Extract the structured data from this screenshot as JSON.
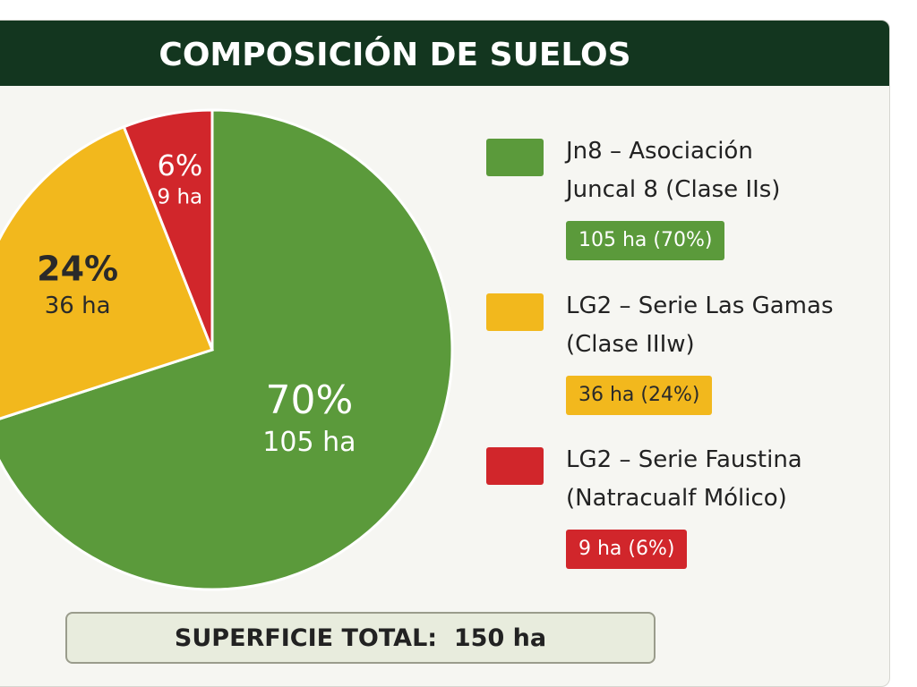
{
  "chart_data": {
    "type": "pie",
    "title": "COMPOSICIÓN DE SUELOS",
    "categories": [
      "Jn8 – Asociación\nJuncal 8 (Clase IIs)",
      "LG2 – Serie Las Gamas\n(Clase IIIw)",
      "LG2 – Serie Faustina\n(Natracualf Mólico)"
    ],
    "values": [
      70,
      24,
      6
    ],
    "value_labels": [
      "70%",
      "24%",
      "6%"
    ],
    "area_labels": [
      "105 ha",
      "36 ha",
      "9 ha"
    ],
    "legend_badges": [
      "105 ha (70%)",
      "36 ha (24%)",
      "9 ha (6%)"
    ],
    "colors": [
      "#5b9a3b",
      "#f2b81d",
      "#d1262b"
    ],
    "total_label": "SUPERFICIE TOTAL:  150 ha"
  }
}
